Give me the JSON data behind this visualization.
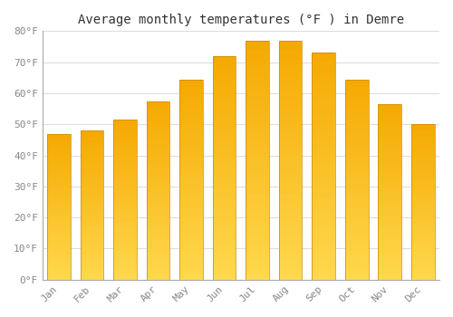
{
  "title": "Average monthly temperatures (°F ) in Demre",
  "categories": [
    "Jan",
    "Feb",
    "Mar",
    "Apr",
    "May",
    "Jun",
    "Jul",
    "Aug",
    "Sep",
    "Oct",
    "Nov",
    "Dec"
  ],
  "values": [
    47,
    48,
    51.5,
    57.5,
    64.5,
    72,
    77,
    77,
    73,
    64.5,
    56.5,
    50
  ],
  "bar_color_top": "#F5A800",
  "bar_color_bottom": "#FFD84D",
  "bar_edge_color": "#C8890A",
  "background_color": "#FFFFFF",
  "plot_bg_color": "#FFFFFF",
  "grid_color": "#DDDDDD",
  "ylim": [
    0,
    80
  ],
  "yticks": [
    0,
    10,
    20,
    30,
    40,
    50,
    60,
    70,
    80
  ],
  "ytick_labels": [
    "0°F",
    "10°F",
    "20°F",
    "30°F",
    "40°F",
    "50°F",
    "60°F",
    "70°F",
    "80°F"
  ],
  "title_fontsize": 10,
  "tick_fontsize": 8,
  "tick_color": "#888888",
  "font_family": "monospace",
  "bar_width": 0.7
}
